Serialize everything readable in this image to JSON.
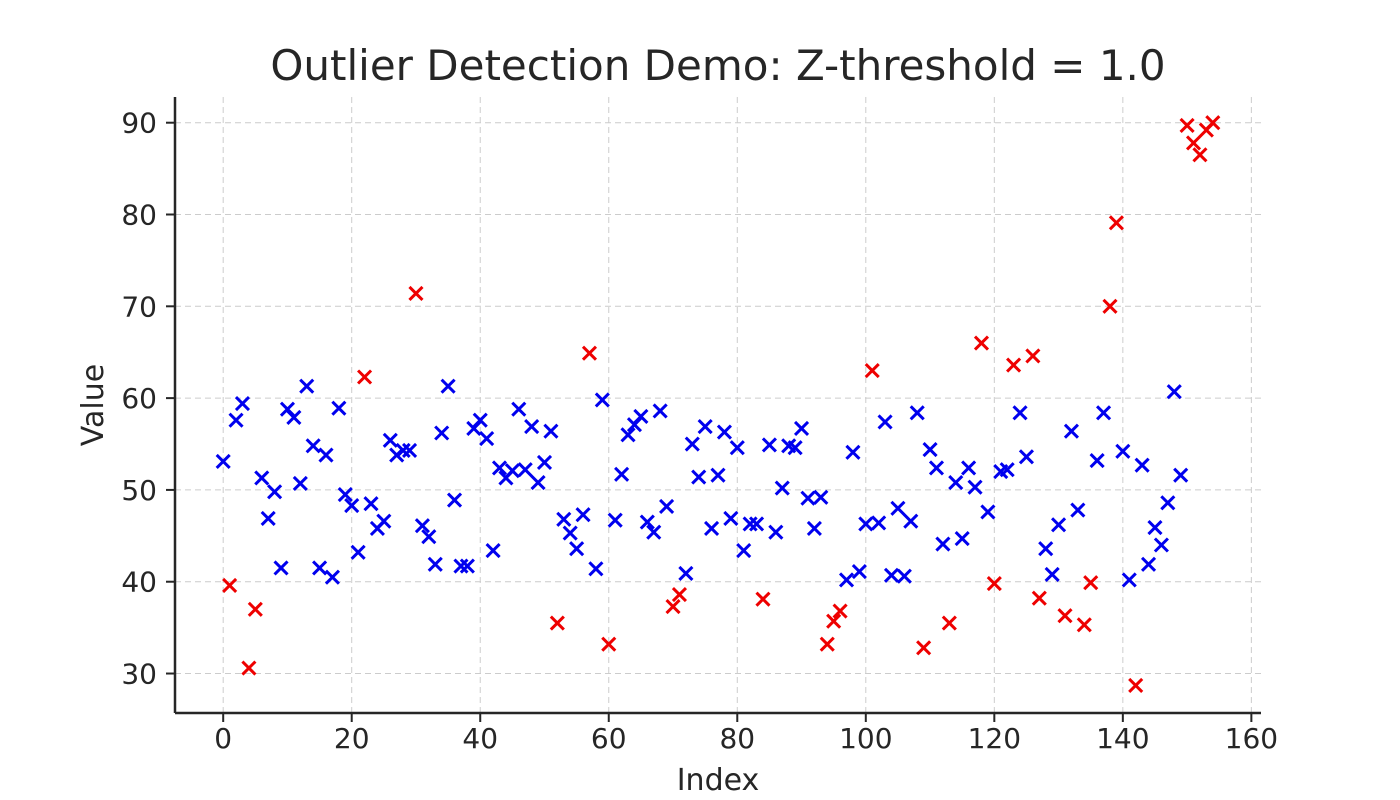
{
  "chart_data": {
    "type": "scatter",
    "title": "Outlier Detection Demo: Z-threshold = 1.0",
    "xlabel": "Index",
    "ylabel": "Value",
    "xlim": [
      -7.5,
      161.5
    ],
    "ylim": [
      25.7,
      92.8
    ],
    "xticks": [
      0,
      20,
      40,
      60,
      80,
      100,
      120,
      140,
      160
    ],
    "yticks": [
      30,
      40,
      50,
      60,
      70,
      80,
      90
    ],
    "grid": true,
    "marker": "x",
    "colors": {
      "normal": "#0000ee",
      "outlier": "#ee0000"
    },
    "series": [
      {
        "name": "",
        "color": "#0000ee",
        "points": [
          [
            0,
            53.1
          ],
          [
            2,
            57.6
          ],
          [
            3,
            59.4
          ],
          [
            6,
            51.3
          ],
          [
            7,
            46.9
          ],
          [
            8,
            49.8
          ],
          [
            9,
            41.5
          ],
          [
            10,
            58.8
          ],
          [
            11,
            57.9
          ],
          [
            12,
            50.7
          ],
          [
            13,
            61.3
          ],
          [
            14,
            54.8
          ],
          [
            15,
            41.5
          ],
          [
            16,
            53.8
          ],
          [
            17,
            40.5
          ],
          [
            18,
            58.9
          ],
          [
            19,
            49.5
          ],
          [
            20,
            48.3
          ],
          [
            21,
            43.2
          ],
          [
            23,
            48.5
          ],
          [
            24,
            45.8
          ],
          [
            25,
            46.6
          ],
          [
            26,
            55.4
          ],
          [
            27,
            53.8
          ],
          [
            28,
            54.3
          ],
          [
            29,
            54.3
          ],
          [
            31,
            46.1
          ],
          [
            32,
            44.9
          ],
          [
            33,
            41.9
          ],
          [
            34,
            56.2
          ],
          [
            35,
            61.3
          ],
          [
            36,
            48.9
          ],
          [
            37,
            41.7
          ],
          [
            38,
            41.7
          ],
          [
            39,
            56.7
          ],
          [
            40,
            57.6
          ],
          [
            41,
            55.6
          ],
          [
            42,
            43.4
          ],
          [
            43,
            52.4
          ],
          [
            44,
            51.3
          ],
          [
            45,
            52.1
          ],
          [
            46,
            58.8
          ],
          [
            47,
            52.2
          ],
          [
            48,
            56.9
          ],
          [
            49,
            50.8
          ],
          [
            50,
            53.0
          ],
          [
            51,
            56.4
          ],
          [
            53,
            46.8
          ],
          [
            54,
            45.3
          ],
          [
            55,
            43.6
          ],
          [
            56,
            47.3
          ],
          [
            58,
            41.4
          ],
          [
            59,
            59.8
          ],
          [
            61,
            46.7
          ],
          [
            62,
            51.7
          ],
          [
            63,
            56.0
          ],
          [
            64,
            57.1
          ],
          [
            65,
            58.0
          ],
          [
            66,
            46.5
          ],
          [
            67,
            45.4
          ],
          [
            68,
            58.6
          ],
          [
            69,
            48.2
          ],
          [
            72,
            40.9
          ],
          [
            73,
            55.0
          ],
          [
            74,
            51.4
          ],
          [
            75,
            56.9
          ],
          [
            76,
            45.8
          ],
          [
            77,
            51.6
          ],
          [
            78,
            56.3
          ],
          [
            79,
            46.9
          ],
          [
            80,
            54.6
          ],
          [
            81,
            43.4
          ],
          [
            82,
            46.3
          ],
          [
            83,
            46.3
          ],
          [
            85,
            54.9
          ],
          [
            86,
            45.4
          ],
          [
            87,
            50.2
          ],
          [
            88,
            54.8
          ],
          [
            89,
            54.6
          ],
          [
            90,
            56.7
          ],
          [
            91,
            49.1
          ],
          [
            92,
            45.8
          ],
          [
            93,
            49.2
          ],
          [
            98,
            54.1
          ],
          [
            99,
            41.1
          ],
          [
            97,
            40.2
          ],
          [
            100,
            46.3
          ],
          [
            102,
            46.4
          ],
          [
            103,
            57.4
          ],
          [
            104,
            40.7
          ],
          [
            105,
            48.0
          ],
          [
            106,
            40.6
          ],
          [
            107,
            46.6
          ],
          [
            108,
            58.4
          ],
          [
            110,
            54.4
          ],
          [
            111,
            52.4
          ],
          [
            112,
            44.1
          ],
          [
            114,
            50.8
          ],
          [
            115,
            44.7
          ],
          [
            116,
            52.4
          ],
          [
            117,
            50.3
          ],
          [
            119,
            47.6
          ],
          [
            121,
            52.0
          ],
          [
            122,
            52.2
          ],
          [
            124,
            58.4
          ],
          [
            125,
            53.6
          ],
          [
            128,
            43.6
          ],
          [
            129,
            40.8
          ],
          [
            130,
            46.2
          ],
          [
            133,
            47.8
          ],
          [
            132,
            56.4
          ],
          [
            136,
            53.2
          ],
          [
            137,
            58.4
          ],
          [
            140,
            54.2
          ],
          [
            141,
            40.2
          ],
          [
            143,
            52.7
          ],
          [
            144,
            41.9
          ],
          [
            145,
            45.9
          ],
          [
            146,
            44.0
          ],
          [
            147,
            48.6
          ],
          [
            148,
            60.7
          ],
          [
            149,
            51.6
          ]
        ]
      },
      {
        "name": "",
        "color": "#ee0000",
        "points": [
          [
            1,
            39.6
          ],
          [
            4,
            30.6
          ],
          [
            5,
            37.0
          ],
          [
            22,
            62.3
          ],
          [
            30,
            71.4
          ],
          [
            52,
            35.5
          ],
          [
            57,
            64.9
          ],
          [
            60,
            33.2
          ],
          [
            70,
            37.3
          ],
          [
            71,
            38.6
          ],
          [
            84,
            38.1
          ],
          [
            94,
            33.2
          ],
          [
            95,
            35.7
          ],
          [
            96,
            36.8
          ],
          [
            101,
            63.0
          ],
          [
            109,
            32.8
          ],
          [
            113,
            35.5
          ],
          [
            118,
            66.0
          ],
          [
            120,
            39.8
          ],
          [
            123,
            63.6
          ],
          [
            126,
            64.6
          ],
          [
            127,
            38.2
          ],
          [
            131,
            36.3
          ],
          [
            134,
            35.3
          ],
          [
            135,
            39.9
          ],
          [
            138,
            70.0
          ],
          [
            139,
            79.1
          ],
          [
            142,
            28.7
          ],
          [
            150,
            89.7
          ],
          [
            151,
            87.8
          ],
          [
            152,
            86.5
          ],
          [
            153,
            89.2
          ],
          [
            154,
            90.0
          ]
        ]
      }
    ]
  }
}
